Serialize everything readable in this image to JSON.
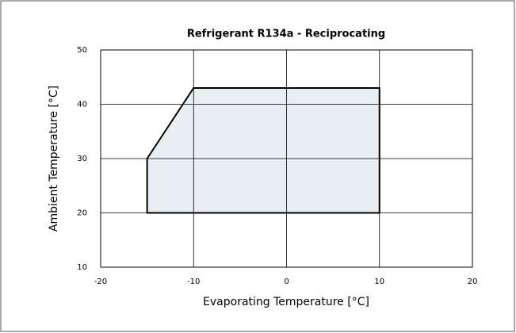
{
  "chart_data": {
    "type": "polygon",
    "title": "Refrigerant R134a - Reciprocating",
    "xlabel": "Evaporating Temperature [°C]",
    "ylabel": "Ambient Temperature [°C]",
    "x": [
      -15,
      -15,
      -10,
      10,
      10
    ],
    "y": [
      20,
      30,
      43,
      43,
      20
    ],
    "color": "#e8eef1",
    "edge_color": "#000000",
    "xlim": [
      -20,
      20
    ],
    "xticks": [
      -20,
      -10,
      0,
      10,
      20
    ],
    "ylim": [
      10,
      50
    ],
    "yticks": [
      10,
      20,
      30,
      40,
      50
    ],
    "grid": true
  }
}
